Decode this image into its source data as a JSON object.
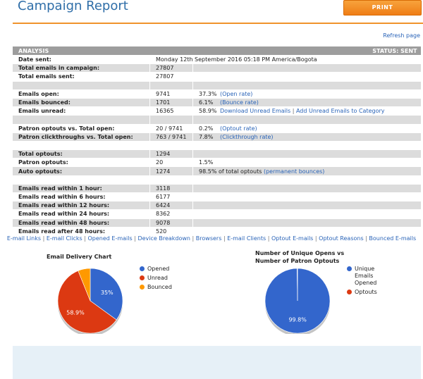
{
  "header": {
    "title": "Campaign Report",
    "print_label": "PRINT",
    "refresh_label": "Refresh page"
  },
  "analysis": {
    "label": "ANALYSIS",
    "status": "STATUS: SENT"
  },
  "rows": {
    "date_sent": {
      "label": "Date sent:",
      "value": "Monday 12th September 2016 05:18 PM America/Bogota"
    },
    "total_campaign": {
      "label": "Total emails in campaign:",
      "value": "27807"
    },
    "total_sent": {
      "label": "Total emails sent:",
      "value": "27807"
    },
    "open": {
      "label": "Emails open:",
      "value": "9741",
      "pct": "37.3%",
      "link": "(Open rate)"
    },
    "bounced": {
      "label": "Emails bounced:",
      "value": "1701",
      "pct": "6.1%",
      "link": "(Bounce rate)"
    },
    "unread": {
      "label": "Emails unread:",
      "value": "16365",
      "pct": "58.9%",
      "link1": "Download Unread Emails",
      "sep": "|",
      "link2": "Add Unread Emails to Category"
    },
    "patron_optouts_open": {
      "label": "Patron optouts vs. Total open:",
      "value": "20 / 9741",
      "pct": "0.2%",
      "link": "(Optout rate)"
    },
    "clickthroughs": {
      "label": "Patron clickthroughs vs. Total open:",
      "value": "763 / 9741",
      "pct": "7.8%",
      "link": "(Clickthrough rate)"
    },
    "total_optouts": {
      "label": "Total optouts:",
      "value": "1294"
    },
    "patron_optouts": {
      "label": "Patron optouts:",
      "value": "20",
      "pct": "1.5%"
    },
    "auto_optouts": {
      "label": "Auto optouts:",
      "value": "1274",
      "pct": "98.5% of total optouts",
      "link": "(permanent bounces)"
    },
    "read_1h": {
      "label": "Emails read within 1 hour:",
      "value": "3118"
    },
    "read_6h": {
      "label": "Emails read within 6 hours:",
      "value": "6177"
    },
    "read_12h": {
      "label": "Emails read within 12 hours:",
      "value": "6424"
    },
    "read_24h": {
      "label": "Emails read within 24 hours:",
      "value": "8362"
    },
    "read_48h": {
      "label": "Emails read within 48 hours:",
      "value": "9078"
    },
    "read_after_48h": {
      "label": "Emails read after 48 hours:",
      "value": "520"
    }
  },
  "nav_links": [
    "E-mail Links",
    "E-mail Clicks",
    "Opened E-mails",
    "Device Breakdown",
    "Browsers",
    "E-mail Clients",
    "Optout E-mails",
    "Optout Reasons",
    "Bounced E-mails"
  ],
  "nav_sep": "|",
  "chart_data": [
    {
      "type": "pie",
      "title": "Email Delivery Chart",
      "categories": [
        "Opened",
        "Unread",
        "Bounced"
      ],
      "values": [
        35,
        58.9,
        6.1
      ],
      "data_labels": [
        "35%",
        "58.9%",
        ""
      ],
      "colors": [
        "#3366cc",
        "#dc3912",
        "#ff9900"
      ],
      "legend": "right"
    },
    {
      "type": "pie",
      "title": "Number of Unique Opens vs Number of Patron Optouts",
      "categories": [
        "Unique Emails Opened",
        "Optouts"
      ],
      "values": [
        99.8,
        0.2
      ],
      "data_labels": [
        "99.8%",
        ""
      ],
      "colors": [
        "#3366cc",
        "#dc3912"
      ],
      "legend": "right"
    }
  ],
  "legend1": [
    "Opened",
    "Unread",
    "Bounced"
  ],
  "legend2": [
    "Unique Emails Opened",
    "Optouts"
  ]
}
